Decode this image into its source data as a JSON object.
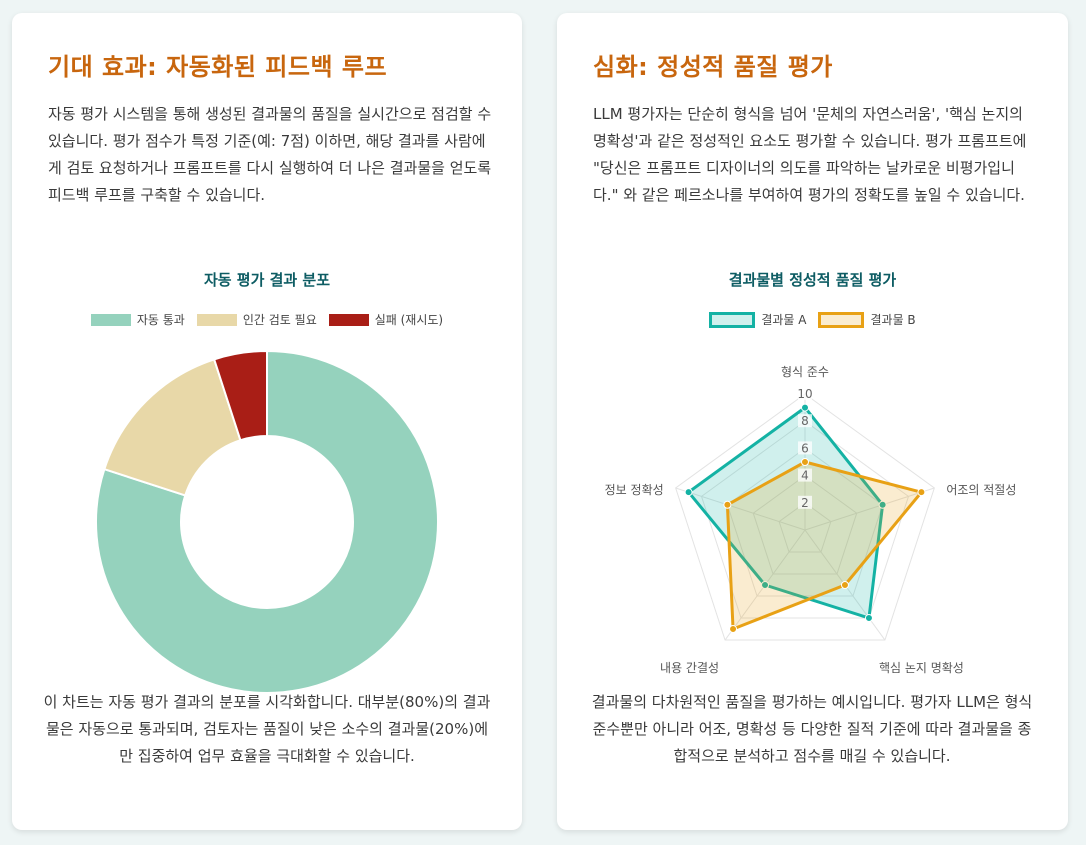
{
  "left_card": {
    "title": "기대 효과: 자동화된 피드백 루프",
    "intro": "자동 평가 시스템을 통해 생성된 결과물의 품질을 실시간으로 점검할 수 있습니다. 평가 점수가 특정 기준(예: 7점) 이하면, 해당 결과를 사람에게 검토 요청하거나 프롬프트를 다시 실행하여 더 나은 결과물을 얻도록 피드백 루프를 구축할 수 있습니다.",
    "caption": "이 차트는 자동 평가 결과의 분포를 시각화합니다. 대부분(80%)의 결과물은 자동으로 통과되며, 검토자는 품질이 낮은 소수의 결과물(20%)에만 집중하여 업무 효율을 극대화할 수 있습니다."
  },
  "right_card": {
    "title": "심화: 정성적 품질 평가",
    "intro": "LLM 평가자는 단순히 형식을 넘어 '문체의 자연스러움', '핵심 논지의 명확성'과 같은 정성적인 요소도 평가할 수 있습니다. 평가 프롬프트에 \"당신은 프롬프트 디자이너의 의도를 파악하는 날카로운 비평가입니다.\" 와 같은 페르소나를 부여하여 평가의 정확도를 높일 수 있습니다.",
    "caption": "결과물의 다차원적인 품질을 평가하는 예시입니다. 평가자 LLM은 형식 준수뿐만 아니라 어조, 명확성 등 다양한 질적 기준에 따라 결과물을 종합적으로 분석하고 점수를 매길 수 있습니다."
  },
  "chart_data": [
    {
      "type": "pie",
      "variant": "doughnut",
      "title": "자동 평가 결과 분포",
      "categories": [
        "자동 통과",
        "인간 검토 필요",
        "실패 (재시도)"
      ],
      "values": [
        80,
        15,
        5
      ],
      "colors": [
        "#95d2bd",
        "#e8d8a8",
        "#a91e16"
      ],
      "legend": "top"
    },
    {
      "type": "radar",
      "title": "결과물별 정성적 품질 평가",
      "categories": [
        "형식 준수",
        "어조의 적절성",
        "핵심 논지 명확성",
        "내용 간결성",
        "정보 정확성"
      ],
      "rlim": [
        0,
        10
      ],
      "ticks": [
        "2",
        "4",
        "6",
        "8",
        "10"
      ],
      "series": [
        {
          "name": "결과물 A",
          "values": [
            9,
            6,
            8,
            5,
            9
          ],
          "color": "#14b2a4"
        },
        {
          "name": "결과물 B",
          "values": [
            5,
            9,
            5,
            9,
            6
          ],
          "color": "#e8a115"
        }
      ],
      "legend": "top"
    }
  ]
}
